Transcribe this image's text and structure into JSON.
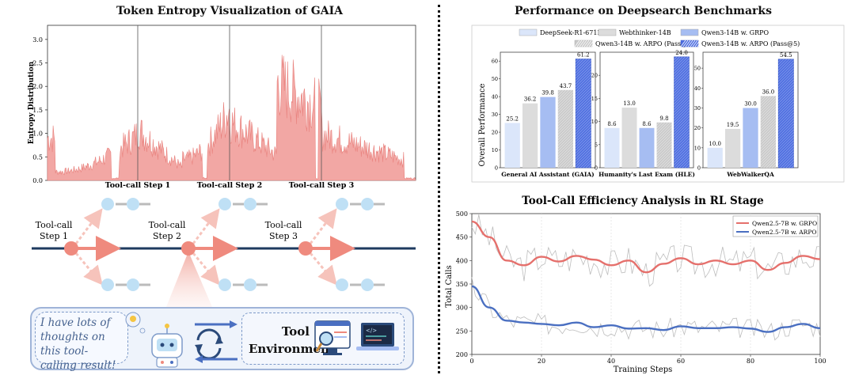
{
  "entropy_panel": {
    "title": "Token Entropy Visualization of GAIA",
    "ylabel": "Entropy Distribution",
    "yticks": [
      "0.0",
      "0.5",
      "1.0",
      "1.5",
      "2.0",
      "2.5",
      "3.0"
    ],
    "step_labels": [
      "Tool-call Step 1",
      "Tool-call Step 2",
      "Tool-call Step 3"
    ],
    "fill_color": "#f2a7a4",
    "line_color": "#e8807c"
  },
  "tree_diagram": {
    "step_labels": [
      "Tool-call\nStep 1",
      "Tool-call\nStep 2",
      "Tool-call\nStep 3"
    ],
    "node_color": "#ef8a7e",
    "branch_node_color": "#bfe0f5",
    "main_line_color": "#1e3a5f"
  },
  "agent_box": {
    "thought_text": "I have lots of thoughts on this tool-calling result!",
    "env_label_line1": "Tool",
    "env_label_line2": "Environment"
  },
  "bar_panel": {
    "title": "Performance on Deepsearch Benchmarks",
    "ylabel": "Overall Performance",
    "legend": [
      "DeepSeek-R1-671B",
      "Webthinker-14B",
      "Qwen3-14B w. GRPO",
      "Qwen3-14B w. ARPO (Pass@1)",
      "Qwen3-14B w. ARPO (Pass@5)"
    ],
    "colors": [
      "#dbe6fa",
      "#dcdcdc",
      "#a6bdf2",
      "#c9c9c9",
      "#4f6fe0"
    ]
  },
  "curve_panel": {
    "title": "Tool-Call Efficiency Analysis in RL Stage",
    "xlabel": "Training Steps",
    "ylabel": "Total Calls",
    "legend": [
      "Qwen2.5-7B w. GRPO",
      "Qwen2.5-7B w. ARPO"
    ],
    "colors": [
      "#e5706c",
      "#4a6fc1"
    ]
  },
  "chart_data": [
    {
      "type": "bar",
      "title": "General AI Assistant (GAIA)",
      "categories": [
        "DeepSeek-R1-671B",
        "Webthinker-14B",
        "Qwen3-14B w. GRPO",
        "Qwen3-14B w. ARPO (Pass@1)",
        "Qwen3-14B w. ARPO (Pass@5)"
      ],
      "values": [
        25.2,
        36.2,
        39.8,
        43.7,
        61.2
      ],
      "ylim": [
        0,
        65
      ],
      "yticks": [
        0,
        10,
        20,
        30,
        40,
        50,
        60
      ]
    },
    {
      "type": "bar",
      "title": "Humanity's Last Exam (HLE)",
      "categories": [
        "DeepSeek-R1-671B",
        "Webthinker-14B",
        "Qwen3-14B w. GRPO",
        "Qwen3-14B w. ARPO (Pass@1)",
        "Qwen3-14B w. ARPO (Pass@5)"
      ],
      "values": [
        8.6,
        13.0,
        8.6,
        9.8,
        24.0
      ],
      "ylim": [
        0,
        25
      ],
      "yticks": [
        0,
        5,
        10,
        15,
        20
      ]
    },
    {
      "type": "bar",
      "title": "WebWalkerQA",
      "categories": [
        "DeepSeek-R1-671B",
        "Webthinker-14B",
        "Qwen3-14B w. GRPO",
        "Qwen3-14B w. ARPO (Pass@1)",
        "Qwen3-14B w. ARPO (Pass@5)"
      ],
      "values": [
        10.0,
        19.5,
        30.0,
        36.0,
        54.5
      ],
      "ylim": [
        0,
        58
      ],
      "yticks": [
        0,
        10,
        20,
        30,
        40,
        50
      ]
    },
    {
      "type": "line",
      "title": "Tool-Call Efficiency Analysis in RL Stage",
      "xlabel": "Training Steps",
      "ylabel": "Total Calls",
      "xlim": [
        0,
        100
      ],
      "ylim": [
        200,
        500
      ],
      "xticks": [
        0,
        20,
        40,
        60,
        80,
        100
      ],
      "yticks": [
        200,
        250,
        300,
        350,
        400,
        450,
        500
      ],
      "x": [
        0,
        5,
        10,
        15,
        20,
        25,
        30,
        35,
        40,
        45,
        50,
        55,
        60,
        65,
        70,
        75,
        80,
        85,
        90,
        95,
        100
      ],
      "series": [
        {
          "name": "Qwen2.5-7B w. GRPO",
          "values": [
            483,
            450,
            400,
            390,
            408,
            398,
            410,
            402,
            390,
            400,
            375,
            393,
            405,
            392,
            400,
            392,
            400,
            380,
            395,
            410,
            403
          ]
        },
        {
          "name": "Qwen2.5-7B w. ARPO",
          "values": [
            345,
            300,
            272,
            268,
            265,
            262,
            268,
            258,
            262,
            255,
            256,
            252,
            260,
            256,
            256,
            258,
            255,
            248,
            258,
            265,
            256
          ]
        }
      ]
    }
  ]
}
